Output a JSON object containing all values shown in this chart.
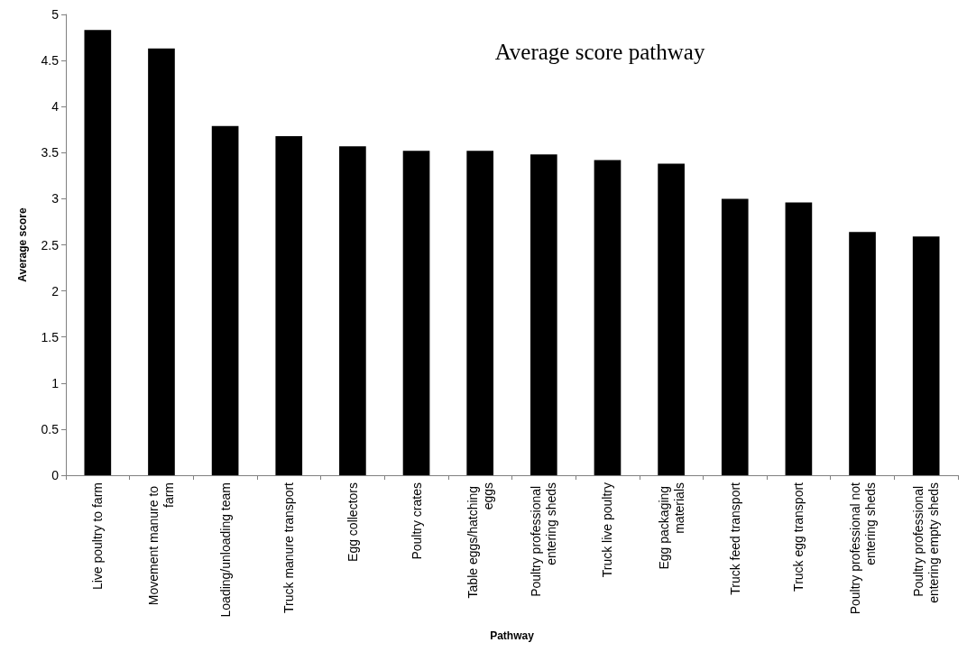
{
  "chart_data": {
    "type": "bar",
    "title": "Average score pathway",
    "xlabel": "Pathway",
    "ylabel": "Average score",
    "categories": [
      "Live poultry to farm",
      "Movement manure to farm",
      "Loading/unloading team",
      "Truck manure transport",
      "Egg collectors",
      "Poultry crates",
      "Table eggs/hatching eggs",
      "Poultry professional entering sheds",
      "Truck live poultry",
      "Egg packaging materials",
      "Truck feed transport",
      "Truck egg transport",
      "Poultry professional not entering sheds",
      "Poultry professional entering empty sheds"
    ],
    "values": [
      4.83,
      4.63,
      3.79,
      3.68,
      3.57,
      3.52,
      3.52,
      3.48,
      3.42,
      3.38,
      3.0,
      2.96,
      2.64,
      2.59
    ],
    "color": "#000000",
    "ylim": [
      0,
      5
    ],
    "yticks": [
      0,
      0.5,
      1,
      1.5,
      2,
      2.5,
      3,
      3.5,
      4,
      4.5,
      5
    ]
  }
}
